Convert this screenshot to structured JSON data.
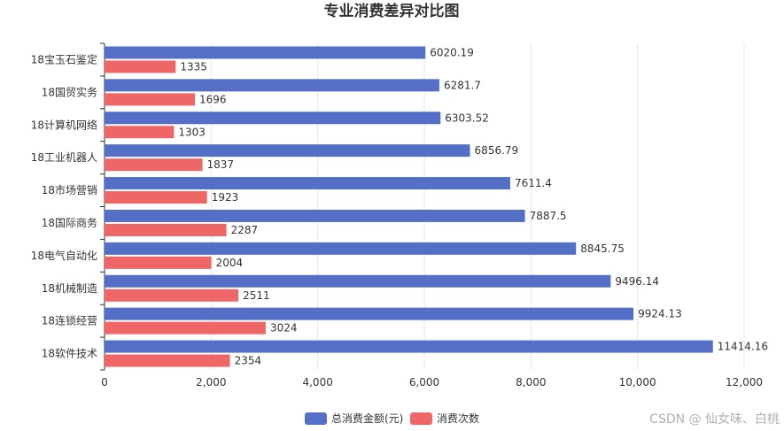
{
  "chart_data": {
    "type": "bar",
    "orientation": "horizontal",
    "title": "专业消费差异对比图",
    "categories": [
      "18宝玉石鉴定",
      "18国贸实务",
      "18计算机网络",
      "18工业机器人",
      "18市场营销",
      "18国际商务",
      "18电气自动化",
      "18机械制造",
      "18连锁经营",
      "18软件技术"
    ],
    "series": [
      {
        "name": "总消费金额(元)",
        "color": "#5470c6",
        "values": [
          6020.19,
          6281.7,
          6303.52,
          6856.79,
          7611.4,
          7887.5,
          8845.75,
          9496.14,
          9924.13,
          11414.16
        ]
      },
      {
        "name": "消费次数",
        "color": "#ee6666",
        "values": [
          1335,
          1696,
          1303,
          1837,
          1923,
          2287,
          2004,
          2511,
          3024,
          2354
        ]
      }
    ],
    "xlim": [
      0,
      12000
    ],
    "xticks": [
      0,
      2000,
      4000,
      6000,
      8000,
      10000,
      12000
    ],
    "xtick_labels": [
      "0",
      "2,000",
      "4,000",
      "6,000",
      "8,000",
      "10,000",
      "12,000"
    ],
    "grid": true,
    "legend_position": "bottom-center"
  },
  "watermark": "CSDN @  仙女味、白桃"
}
